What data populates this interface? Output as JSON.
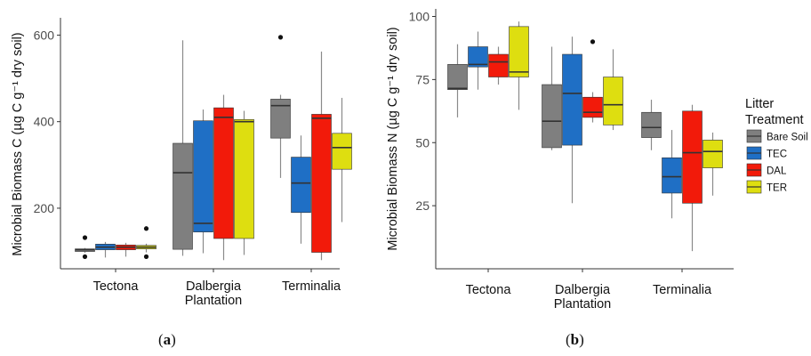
{
  "colors": {
    "bare_soil": "#7f7f7f",
    "tec": "#1f6fc5",
    "dal": "#f21a0a",
    "ter": "#dede10",
    "axis": "#333333",
    "whisker": "#8a8a8a"
  },
  "legend": {
    "title_line1": "Litter",
    "title_line2": "Treatment",
    "entries": [
      "Bare Soil",
      "TEC",
      "DAL",
      "TER"
    ]
  },
  "chart_data": [
    {
      "type": "boxplot",
      "panel_label": "a",
      "ylabel": "Microbial Biomass C (µg C g⁻¹ dry soil)",
      "ylim": [
        60,
        640
      ],
      "yticks": [
        200,
        400,
        600
      ],
      "categories": [
        "Tectona",
        "Dalbergia Plantation",
        "Terminalia"
      ],
      "category_lines": [
        [
          "Tectona"
        ],
        [
          "Dalbergia",
          "Plantation"
        ],
        [
          "Terminalia"
        ]
      ],
      "series": [
        {
          "name": "Bare Soil",
          "boxes": [
            {
              "min": 97,
              "q1": 100,
              "median": 104,
              "q3": 106,
              "max": 108,
              "outliers": [
                132,
                88
              ]
            },
            {
              "min": 90,
              "q1": 105,
              "median": 282,
              "q3": 350,
              "max": 588,
              "outliers": []
            },
            {
              "min": 270,
              "q1": 362,
              "median": 437,
              "q3": 452,
              "max": 462,
              "outliers": [
                595
              ]
            }
          ]
        },
        {
          "name": "TEC",
          "boxes": [
            {
              "min": 86,
              "q1": 104,
              "median": 110,
              "q3": 117,
              "max": 122,
              "outliers": []
            },
            {
              "min": 96,
              "q1": 145,
              "median": 165,
              "q3": 402,
              "max": 428,
              "outliers": []
            },
            {
              "min": 118,
              "q1": 190,
              "median": 258,
              "q3": 318,
              "max": 368,
              "outliers": []
            }
          ]
        },
        {
          "name": "DAL",
          "boxes": [
            {
              "min": 88,
              "q1": 104,
              "median": 110,
              "q3": 115,
              "max": 120,
              "outliers": []
            },
            {
              "min": 80,
              "q1": 130,
              "median": 410,
              "q3": 432,
              "max": 462,
              "outliers": []
            },
            {
              "min": 80,
              "q1": 98,
              "median": 408,
              "q3": 417,
              "max": 562,
              "outliers": []
            }
          ]
        },
        {
          "name": "TER",
          "boxes": [
            {
              "min": 98,
              "q1": 106,
              "median": 110,
              "q3": 114,
              "max": 118,
              "outliers": [
                153,
                88
              ]
            },
            {
              "min": 92,
              "q1": 130,
              "median": 400,
              "q3": 405,
              "max": 425,
              "outliers": []
            },
            {
              "min": 168,
              "q1": 290,
              "median": 340,
              "q3": 373,
              "max": 455,
              "outliers": []
            }
          ]
        }
      ]
    },
    {
      "type": "boxplot",
      "panel_label": "b",
      "ylabel": "Microbial Biomass N (µg C g⁻¹ dry soil)",
      "ylim": [
        0,
        103
      ],
      "yticks": [
        25,
        50,
        75,
        100
      ],
      "categories": [
        "Tectona",
        "Dalbergia Plantation",
        "Terminalia"
      ],
      "category_lines": [
        [
          "Tectona"
        ],
        [
          "Dalbergia",
          "Plantation"
        ],
        [
          "Terminalia"
        ]
      ],
      "series": [
        {
          "name": "Bare Soil",
          "boxes": [
            {
              "min": 60,
              "q1": 71,
              "median": 71.5,
              "q3": 81,
              "max": 89,
              "outliers": []
            },
            {
              "min": 47,
              "q1": 48,
              "median": 58.5,
              "q3": 73,
              "max": 88,
              "outliers": []
            },
            {
              "min": 47,
              "q1": 52,
              "median": 56,
              "q3": 62,
              "max": 67,
              "outliers": []
            }
          ]
        },
        {
          "name": "TEC",
          "boxes": [
            {
              "min": 71,
              "q1": 80,
              "median": 81,
              "q3": 88,
              "max": 94,
              "outliers": []
            },
            {
              "min": 26,
              "q1": 49,
              "median": 69.5,
              "q3": 85,
              "max": 92,
              "outliers": []
            },
            {
              "min": 20,
              "q1": 30,
              "median": 36.5,
              "q3": 44,
              "max": 55,
              "outliers": []
            }
          ]
        },
        {
          "name": "DAL",
          "boxes": [
            {
              "min": 73,
              "q1": 76,
              "median": 82,
              "q3": 85,
              "max": 88,
              "outliers": []
            },
            {
              "min": 58,
              "q1": 60,
              "median": 62,
              "q3": 68,
              "max": 70,
              "outliers": [
                90
              ]
            },
            {
              "min": 7,
              "q1": 26,
              "median": 46,
              "q3": 62.5,
              "max": 65,
              "outliers": []
            }
          ]
        },
        {
          "name": "TER",
          "boxes": [
            {
              "min": 63,
              "q1": 76,
              "median": 78,
              "q3": 96,
              "max": 98,
              "outliers": []
            },
            {
              "min": 55,
              "q1": 57,
              "median": 65,
              "q3": 76,
              "max": 87,
              "outliers": []
            },
            {
              "min": 29,
              "q1": 40,
              "median": 46.5,
              "q3": 51,
              "max": 54,
              "outliers": []
            }
          ]
        }
      ]
    }
  ]
}
